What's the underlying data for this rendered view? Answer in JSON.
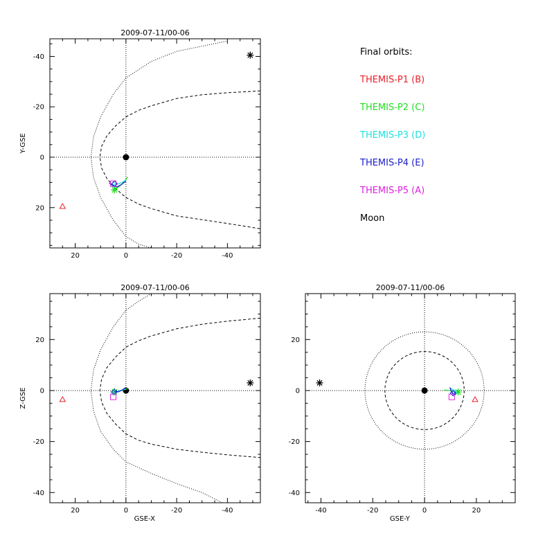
{
  "legend": {
    "title": "Final orbits:",
    "items": [
      {
        "label": "THEMIS-P1 (B)",
        "color": "#e8202a"
      },
      {
        "label": "THEMIS-P2 (C)",
        "color": "#22dd22"
      },
      {
        "label": "THEMIS-P3 (D)",
        "color": "#22e0e0"
      },
      {
        "label": "THEMIS-P4 (E)",
        "color": "#1c1ccc"
      },
      {
        "label": "THEMIS-P5 (A)",
        "color": "#dd22dd"
      },
      {
        "label": "Moon",
        "color": "#000000"
      }
    ]
  },
  "chart_data": [
    {
      "type": "scatter",
      "title": "2009-07-11/00-06",
      "xlabel": "",
      "ylabel": "Y-GSE",
      "xlim": [
        30,
        -53
      ],
      "ylim": [
        36,
        -47
      ],
      "xticks": [
        20,
        0,
        -20,
        -40
      ],
      "yticks": [
        -40,
        -20,
        0,
        20
      ],
      "xtick_labels": [
        "20",
        "0",
        "-20",
        "-40"
      ],
      "ytick_labels": [
        "-40",
        "-20",
        "0",
        "20"
      ],
      "axes_lines": {
        "x0": 0,
        "y0": 0
      },
      "boundaries": {
        "magnetopause": [
          [
            -53,
            -26.3
          ],
          [
            -40,
            -25.6
          ],
          [
            -30,
            -24.8
          ],
          [
            -20,
            -23.3
          ],
          [
            -10,
            -20.4
          ],
          [
            -5,
            -18.6
          ],
          [
            0,
            -16
          ],
          [
            4,
            -12.5
          ],
          [
            7.5,
            -8.5
          ],
          [
            9.6,
            -4.3
          ],
          [
            10.3,
            0
          ],
          [
            9.6,
            4.3
          ],
          [
            7.5,
            8.5
          ],
          [
            4,
            12.5
          ],
          [
            0,
            16
          ],
          [
            -5,
            18.6
          ],
          [
            -10,
            20.4
          ],
          [
            -20,
            23.3
          ],
          [
            -30,
            24.8
          ],
          [
            -40,
            26.3
          ],
          [
            -53,
            28.4
          ]
        ],
        "bow_shock": [
          [
            -39.5,
            -46
          ],
          [
            -20,
            -42
          ],
          [
            -10,
            -38
          ],
          [
            0,
            -31.5
          ],
          [
            5,
            -25
          ],
          [
            10,
            -16
          ],
          [
            12.8,
            -8
          ],
          [
            13.8,
            0
          ],
          [
            12.8,
            8
          ],
          [
            10,
            16
          ],
          [
            5,
            25
          ],
          [
            0,
            31.5
          ],
          [
            -5,
            34.5
          ],
          [
            -10,
            36
          ]
        ]
      },
      "earth": [
        0,
        0
      ],
      "series": [
        {
          "name": "THEMIS-P1 (B)",
          "marker": "triangle",
          "color": "#e8202a",
          "points": [
            [
              25,
              19.5
            ]
          ]
        },
        {
          "name": "THEMIS-P2 (C)",
          "marker": "asterisk",
          "color": "#22dd22",
          "points": [
            [
              4.5,
              13
            ]
          ],
          "track": [
            [
              4.5,
              13
            ],
            [
              2.5,
              11.5
            ],
            [
              0.5,
              9.6
            ],
            [
              -0.7,
              7.8
            ]
          ]
        },
        {
          "name": "THEMIS-P3 (D)",
          "marker": "diamond",
          "color": "#22e0e0",
          "points": [
            [
              4.8,
              11
            ]
          ],
          "track": [
            [
              4.8,
              11
            ],
            [
              3,
              10.6
            ],
            [
              1.2,
              9.8
            ],
            [
              0,
              9
            ]
          ]
        },
        {
          "name": "THEMIS-P4 (E)",
          "marker": "diamond",
          "color": "#1c1ccc",
          "points": [
            [
              4.5,
              10.5
            ]
          ],
          "track": [
            [
              6.6,
              10.3
            ],
            [
              5,
              11.2
            ],
            [
              3.6,
              11.8
            ],
            [
              2,
              11
            ],
            [
              0,
              9.5
            ]
          ]
        },
        {
          "name": "THEMIS-P5 (A)",
          "marker": "square",
          "color": "#dd22dd",
          "points": [
            [
              5,
              10.5
            ]
          ]
        },
        {
          "name": "Moon",
          "marker": "asterisk",
          "color": "#000000",
          "points": [
            [
              -49,
              -40.5
            ]
          ]
        }
      ]
    },
    {
      "type": "scatter",
      "title": "2009-07-11/00-06",
      "xlabel": "GSE-X",
      "ylabel": "Z-GSE",
      "xlim": [
        30,
        -53
      ],
      "ylim": [
        -44,
        38
      ],
      "xticks": [
        20,
        0,
        -20,
        -40
      ],
      "yticks": [
        20,
        0,
        -20,
        -40
      ],
      "xtick_labels": [
        "20",
        "0",
        "-20",
        "-40"
      ],
      "ytick_labels": [
        "20",
        "0",
        "-20",
        "-40"
      ],
      "axes_lines": {
        "x0": 0,
        "y0": 0
      },
      "boundaries": {
        "magnetopause": [
          [
            -53,
            28.4
          ],
          [
            -40,
            27.2
          ],
          [
            -30,
            26
          ],
          [
            -20,
            24.2
          ],
          [
            -10,
            21.4
          ],
          [
            -5,
            19.5
          ],
          [
            0,
            17
          ],
          [
            4,
            13.2
          ],
          [
            7.5,
            9
          ],
          [
            9.6,
            4.5
          ],
          [
            10.3,
            0
          ],
          [
            9.6,
            -4.5
          ],
          [
            7.5,
            -9
          ],
          [
            4,
            -13.2
          ],
          [
            0,
            -17
          ],
          [
            -5,
            -19.5
          ],
          [
            -10,
            -21
          ],
          [
            -20,
            -23
          ],
          [
            -30,
            -24.2
          ],
          [
            -40,
            -25.2
          ],
          [
            -53,
            -26.3
          ]
        ],
        "bow_shock": [
          [
            -10,
            38
          ],
          [
            -5,
            35
          ],
          [
            0,
            31.5
          ],
          [
            5,
            25
          ],
          [
            10,
            16
          ],
          [
            12.8,
            8
          ],
          [
            13.8,
            0
          ],
          [
            12.8,
            -8
          ],
          [
            10,
            -16
          ],
          [
            5,
            -23
          ],
          [
            0,
            -28
          ],
          [
            -10,
            -32.5
          ],
          [
            -20,
            -36.5
          ],
          [
            -30,
            -40
          ],
          [
            -38,
            -44
          ]
        ]
      },
      "earth": [
        0,
        0
      ],
      "series": [
        {
          "name": "THEMIS-P1 (B)",
          "marker": "triangle",
          "color": "#e8202a",
          "points": [
            [
              25,
              -3.5
            ]
          ]
        },
        {
          "name": "THEMIS-P2 (C)",
          "marker": "asterisk",
          "color": "#22dd22",
          "points": [
            [
              4.5,
              -0.5
            ]
          ],
          "track": [
            [
              4.5,
              -0.5
            ],
            [
              2.5,
              -0.2
            ],
            [
              0.5,
              0.4
            ],
            [
              -0.7,
              0.8
            ]
          ]
        },
        {
          "name": "THEMIS-P3 (D)",
          "marker": "diamond",
          "color": "#22e0e0",
          "points": [
            [
              4.8,
              -0.8
            ]
          ],
          "track": [
            [
              4.8,
              -0.8
            ],
            [
              3,
              -0.2
            ],
            [
              1,
              0.3
            ],
            [
              0,
              0.6
            ]
          ]
        },
        {
          "name": "THEMIS-P4 (E)",
          "marker": "diamond",
          "color": "#1c1ccc",
          "points": [
            [
              4.6,
              -0.5
            ]
          ],
          "track": [
            [
              4.6,
              -0.5
            ],
            [
              3,
              -0.5
            ],
            [
              1.5,
              0.2
            ],
            [
              0.2,
              1
            ]
          ]
        },
        {
          "name": "THEMIS-P5 (A)",
          "marker": "square",
          "color": "#dd22dd",
          "points": [
            [
              5,
              -2.5
            ]
          ]
        },
        {
          "name": "Moon",
          "marker": "asterisk",
          "color": "#000000",
          "points": [
            [
              -49,
              3
            ]
          ]
        }
      ]
    },
    {
      "type": "scatter",
      "title": "2009-07-11/00-06",
      "xlabel": "GSE-Y",
      "ylabel": "",
      "xlim": [
        -46,
        35
      ],
      "ylim": [
        -44,
        38
      ],
      "xticks": [
        -40,
        -20,
        0,
        20
      ],
      "yticks": [
        20,
        0,
        -20,
        -40
      ],
      "xtick_labels": [
        "-40",
        "-20",
        "0",
        "20"
      ],
      "ytick_labels": [
        "20",
        "0",
        "-20",
        "-40"
      ],
      "axes_lines": {
        "x0": 0,
        "y0": 0
      },
      "boundaries": {
        "magnetopause_radius": 15.3,
        "bow_shock_radius": 23
      },
      "earth": [
        0,
        0
      ],
      "series": [
        {
          "name": "THEMIS-P1 (B)",
          "marker": "triangle",
          "color": "#e8202a",
          "points": [
            [
              19.5,
              -3.5
            ]
          ]
        },
        {
          "name": "THEMIS-P2 (C)",
          "marker": "asterisk",
          "color": "#22dd22",
          "points": [
            [
              13,
              -0.6
            ]
          ],
          "track": [
            [
              13,
              -0.6
            ],
            [
              11.6,
              -0.4
            ],
            [
              9.8,
              0
            ],
            [
              7.6,
              0.2
            ]
          ]
        },
        {
          "name": "THEMIS-P3 (D)",
          "marker": "diamond",
          "color": "#22e0e0",
          "points": [
            [
              11.5,
              -0.8
            ]
          ],
          "track": [
            [
              11.5,
              -0.8
            ],
            [
              11,
              0.2
            ],
            [
              10,
              1
            ]
          ]
        },
        {
          "name": "THEMIS-P4 (E)",
          "marker": "diamond",
          "color": "#1c1ccc",
          "points": [
            [
              11,
              -1
            ]
          ],
          "track": [
            [
              11.6,
              -0.4
            ],
            [
              11.8,
              -1.5
            ],
            [
              11,
              -1.2
            ],
            [
              10.2,
              0
            ],
            [
              9.8,
              1.2
            ]
          ]
        },
        {
          "name": "THEMIS-P5 (A)",
          "marker": "square",
          "color": "#dd22dd",
          "points": [
            [
              10.5,
              -2.5
            ]
          ]
        },
        {
          "name": "Moon",
          "marker": "asterisk",
          "color": "#000000",
          "points": [
            [
              -40.5,
              3
            ]
          ]
        }
      ]
    }
  ]
}
